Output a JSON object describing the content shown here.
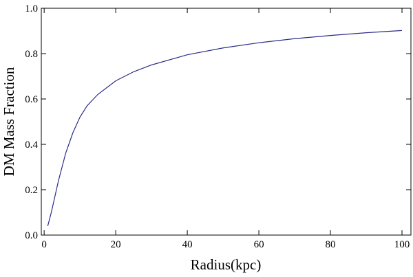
{
  "chart_data": {
    "type": "line",
    "x_label": "Radius(kpc)",
    "y_label": "DM Mass Fraction",
    "xlim": [
      -0.8,
      102.5
    ],
    "ylim": [
      0,
      1
    ],
    "xticks": [
      0,
      20,
      40,
      60,
      80,
      100
    ],
    "yticks": [
      {
        "value": 0,
        "label": "0.0"
      },
      {
        "value": 0.2,
        "label": "0.2"
      },
      {
        "value": 0.4,
        "label": "0.4"
      },
      {
        "value": 0.6,
        "label": "0.6"
      },
      {
        "value": 0.8,
        "label": "0.8"
      },
      {
        "value": 1,
        "label": "1.0"
      }
    ],
    "series": [
      {
        "color": "#2b2b8a",
        "x": [
          1,
          2,
          3,
          4,
          5,
          6,
          8,
          10,
          12,
          15,
          20,
          25,
          30,
          40,
          50,
          60,
          70,
          80,
          90,
          100
        ],
        "values": [
          0.04,
          0.1,
          0.17,
          0.24,
          0.3,
          0.36,
          0.45,
          0.52,
          0.57,
          0.62,
          0.68,
          0.72,
          0.75,
          0.795,
          0.825,
          0.848,
          0.866,
          0.88,
          0.892,
          0.902
        ]
      }
    ]
  }
}
